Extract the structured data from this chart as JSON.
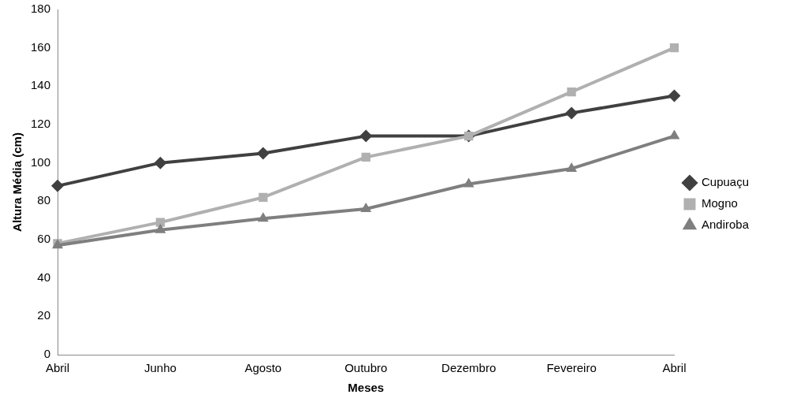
{
  "chart_data": {
    "type": "line",
    "xlabel": "Meses",
    "ylabel": "Altura Média (cm)",
    "categories": [
      "Abril",
      "Junho",
      "Agosto",
      "Outubro",
      "Dezembro",
      "Fevereiro",
      "Abril"
    ],
    "series": [
      {
        "name": "Cupuaçu",
        "color": "#404040",
        "marker": "diamond",
        "values": [
          88,
          100,
          105,
          114,
          114,
          126,
          135
        ]
      },
      {
        "name": "Mogno",
        "color": "#b0b0b0",
        "marker": "square",
        "values": [
          58,
          69,
          82,
          103,
          114,
          137,
          160
        ]
      },
      {
        "name": "Andiroba",
        "color": "#7f7f7f",
        "marker": "triangle",
        "values": [
          57,
          65,
          71,
          76,
          89,
          97,
          114
        ]
      }
    ],
    "ylim": [
      0,
      180
    ],
    "yticks": [
      0,
      20,
      40,
      60,
      80,
      100,
      120,
      140,
      160,
      180
    ],
    "grid": false,
    "legend": "right",
    "line_style": "solid"
  }
}
